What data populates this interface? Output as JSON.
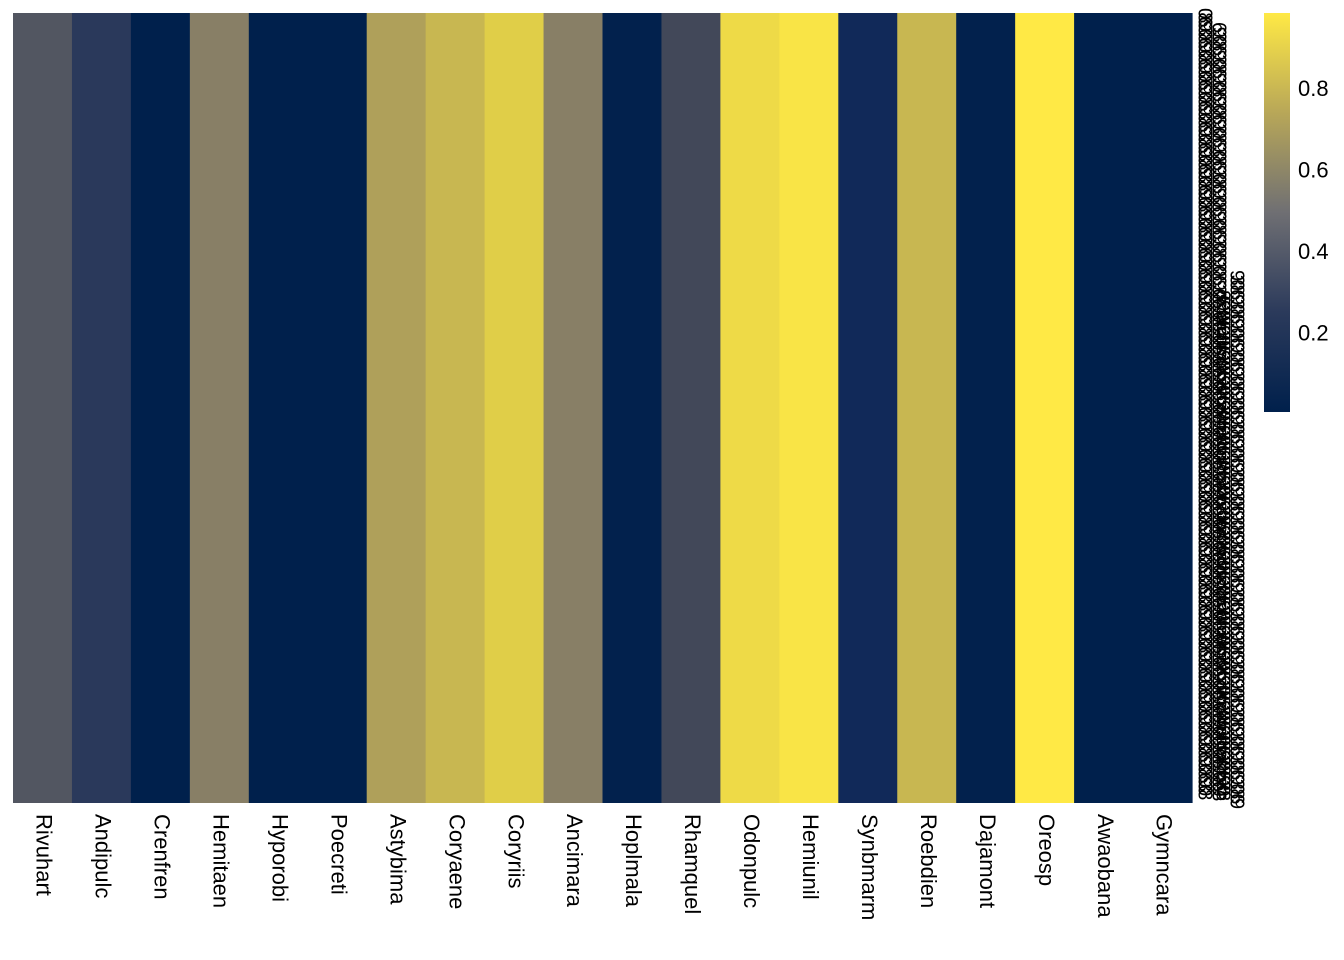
{
  "chart_data": {
    "type": "heatmap",
    "colormap": "cividis",
    "columns": [
      "Rivuhart",
      "Andipulc",
      "Crenfren",
      "Hemitaen",
      "Hyporobi",
      "Poecreti",
      "Astybima",
      "Coryaene",
      "Coryriis",
      "Ancimara",
      "Hoplmala",
      "Rhamquel",
      "Odonpulc",
      "Hemiunil",
      "Synbmarm",
      "Roebdien",
      "Dajamont",
      "Oreosp",
      "Awaobana",
      "Gymncara"
    ],
    "values": [
      0.42,
      0.25,
      0.01,
      0.6,
      0.01,
      0.01,
      0.72,
      0.8,
      0.88,
      0.6,
      0.02,
      0.37,
      0.93,
      0.97,
      0.12,
      0.8,
      0.02,
      0.99,
      0.01,
      0.01
    ],
    "colorbar": {
      "range": [
        0.01,
        0.99
      ],
      "ticks": [
        0.2,
        0.4,
        0.6,
        0.8
      ],
      "tick_labels": [
        "0.2",
        "0.4",
        "0.6",
        "0.8"
      ]
    },
    "row_labels": "overlapping, illegible numeric row labels",
    "grid": false
  }
}
